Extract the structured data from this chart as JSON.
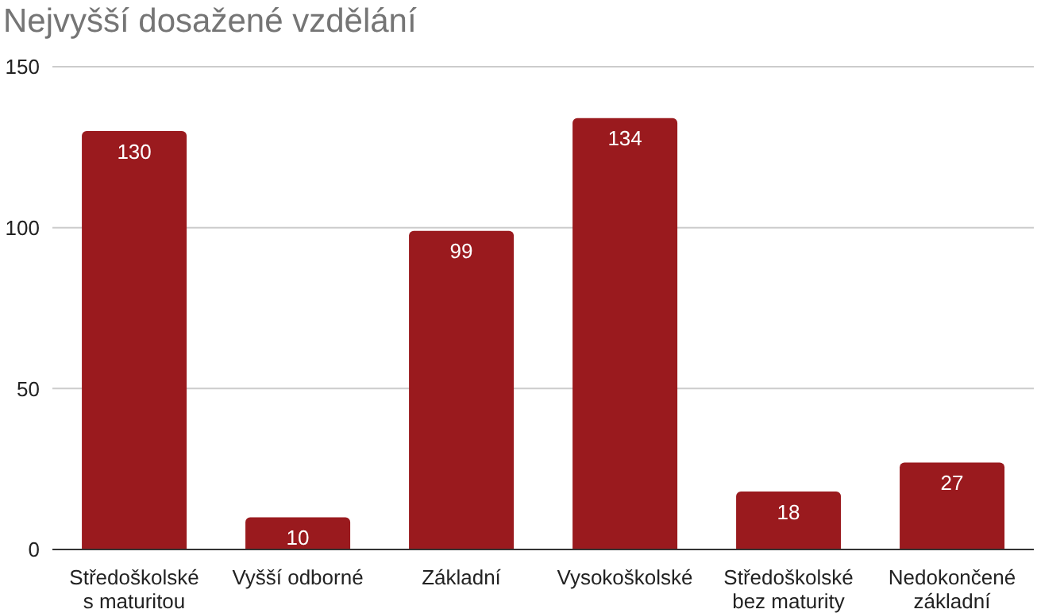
{
  "chart_data": {
    "type": "bar",
    "title": "Nejvyšší dosažené vzdělání",
    "categories": [
      "Středoškolské\ns maturitou",
      "Vyšší odborné",
      "Základní",
      "Vysokoškolské",
      "Středoškolské\nbez maturity",
      "Nedokončené\nzákladní"
    ],
    "values": [
      130,
      10,
      99,
      134,
      18,
      27
    ],
    "color": "#9a1a1e",
    "ylim": [
      0,
      150
    ],
    "yticks": [
      0,
      50,
      100,
      150
    ],
    "grid": "y",
    "data_labels": true,
    "legend": false
  }
}
